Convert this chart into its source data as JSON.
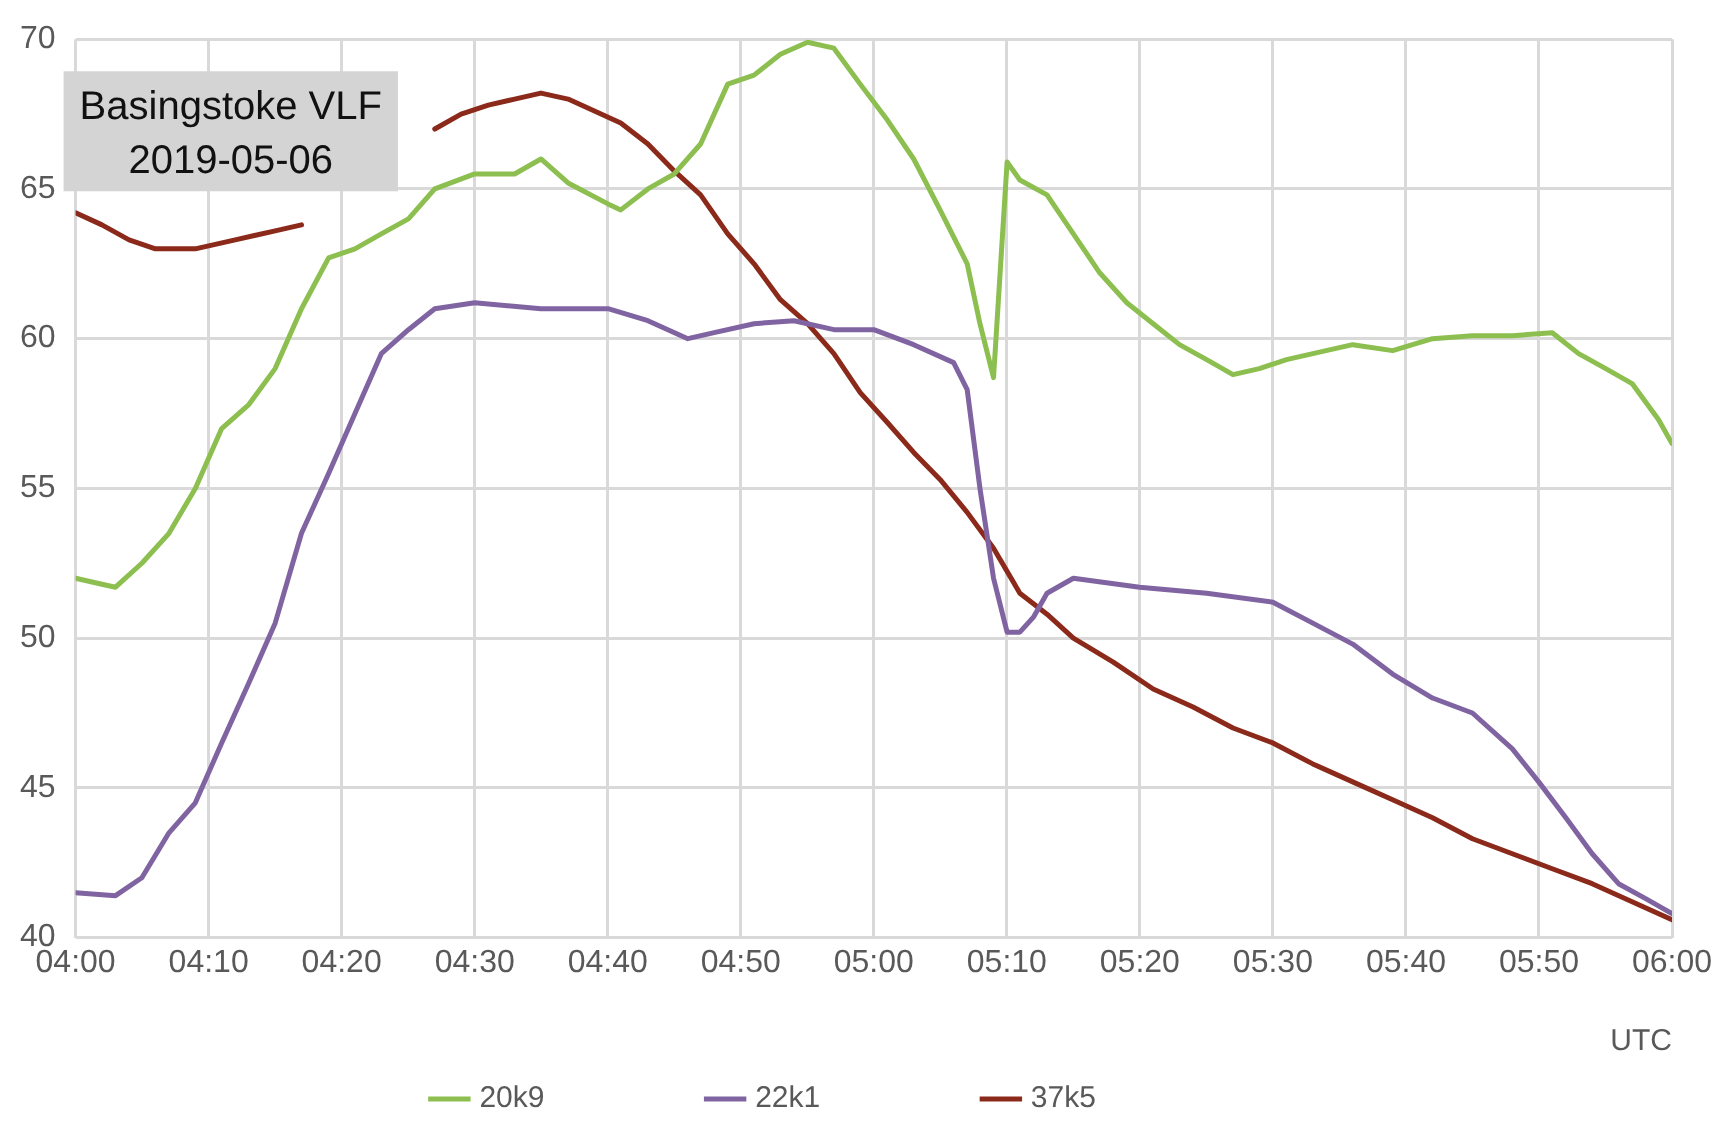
{
  "chart_data": {
    "type": "line",
    "xlabel": "UTC",
    "annotations": [
      "Basingstoke VLF",
      "2019-05-06"
    ],
    "xlim": [
      4,
      6
    ],
    "xticks": [
      {
        "value": 4,
        "label": "04:00"
      },
      {
        "value": 4.1667,
        "label": "04:10"
      },
      {
        "value": 4.3333,
        "label": "04:20"
      },
      {
        "value": 4.5,
        "label": "04:30"
      },
      {
        "value": 4.6667,
        "label": "04:40"
      },
      {
        "value": 4.8333,
        "label": "04:50"
      },
      {
        "value": 5,
        "label": "05:00"
      },
      {
        "value": 5.1667,
        "label": "05:10"
      },
      {
        "value": 5.3333,
        "label": "05:20"
      },
      {
        "value": 5.5,
        "label": "05:30"
      },
      {
        "value": 5.6667,
        "label": "05:40"
      },
      {
        "value": 5.8333,
        "label": "05:50"
      },
      {
        "value": 6,
        "label": "06:00"
      }
    ],
    "ylim": [
      40,
      70
    ],
    "yticks": [
      40,
      45,
      50,
      55,
      60,
      65,
      70
    ],
    "grid": true,
    "legend": "bottom",
    "marker": "none",
    "line_style": "solid",
    "series": [
      {
        "name": "20k9",
        "color": "#8cbf4f",
        "x": [
          4,
          4.033,
          4.05,
          4.083,
          4.117,
          4.15,
          4.183,
          4.217,
          4.25,
          4.283,
          4.317,
          4.35,
          4.383,
          4.417,
          4.45,
          4.5,
          4.55,
          4.583,
          4.617,
          4.667,
          4.683,
          4.717,
          4.75,
          4.783,
          4.817,
          4.85,
          4.883,
          4.917,
          4.95,
          4.983,
          5.017,
          5.05,
          5.083,
          5.117,
          5.133,
          5.15,
          5.167,
          5.183,
          5.217,
          5.25,
          5.283,
          5.317,
          5.35,
          5.383,
          5.417,
          5.45,
          5.483,
          5.517,
          5.55,
          5.6,
          5.65,
          5.7,
          5.75,
          5.8,
          5.85,
          5.883,
          5.917,
          5.95,
          5.983,
          6
        ],
        "values": [
          52.0,
          51.8,
          51.7,
          52.5,
          53.5,
          55,
          57,
          57.8,
          59,
          61,
          62.7,
          63,
          63.5,
          64,
          65,
          65.5,
          65.5,
          66,
          65.2,
          64.5,
          64.3,
          65,
          65.5,
          66.5,
          68.5,
          68.8,
          69.5,
          69.9,
          69.7,
          68.5,
          67.3,
          66,
          64.3,
          62.5,
          60.5,
          58.7,
          65.9,
          65.3,
          64.8,
          63.5,
          62.2,
          61.2,
          60.5,
          59.8,
          59.3,
          58.8,
          59.0,
          59.3,
          59.5,
          59.8,
          59.6,
          60.0,
          60.1,
          60.1,
          60.2,
          59.5,
          59.0,
          58.5,
          57.3,
          56.5
        ]
      },
      {
        "name": "22k1",
        "color": "#8064a2",
        "x": [
          4,
          4.05,
          4.083,
          4.117,
          4.15,
          4.183,
          4.217,
          4.25,
          4.283,
          4.317,
          4.35,
          4.383,
          4.417,
          4.45,
          4.5,
          4.583,
          4.667,
          4.717,
          4.767,
          4.8,
          4.85,
          4.9,
          4.95,
          5,
          5.05,
          5.1,
          5.117,
          5.133,
          5.15,
          5.167,
          5.183,
          5.2,
          5.217,
          5.25,
          5.333,
          5.417,
          5.5,
          5.55,
          5.6,
          5.65,
          5.7,
          5.75,
          5.8,
          5.833,
          5.867,
          5.9,
          5.933,
          5.967,
          6
        ],
        "values": [
          41.5,
          41.4,
          42,
          43.5,
          44.5,
          46.5,
          48.5,
          50.5,
          53.5,
          55.5,
          57.5,
          59.5,
          60.3,
          61,
          61.2,
          61,
          61,
          60.6,
          60.0,
          60.2,
          60.5,
          60.6,
          60.3,
          60.3,
          59.8,
          59.2,
          58.3,
          55,
          52,
          50.2,
          50.2,
          50.7,
          51.5,
          52.0,
          51.7,
          51.5,
          51.2,
          50.5,
          49.8,
          48.8,
          48,
          47.5,
          46.3,
          45.2,
          44.0,
          42.8,
          41.8,
          41.3,
          40.8
        ]
      },
      {
        "name": "37k5",
        "color": "#8b2a1a",
        "x": [
          4,
          4.033,
          4.067,
          4.1,
          4.15,
          4.2,
          4.25,
          4.283,
          4.367,
          4.45,
          4.483,
          4.517,
          4.55,
          4.583,
          4.617,
          4.65,
          4.683,
          4.717,
          4.75,
          4.783,
          4.817,
          4.85,
          4.883,
          4.917,
          4.95,
          4.983,
          5.017,
          5.05,
          5.083,
          5.117,
          5.15,
          5.183,
          5.217,
          5.25,
          5.3,
          5.35,
          5.4,
          5.45,
          5.5,
          5.55,
          5.6,
          5.65,
          5.7,
          5.75,
          5.8,
          5.85,
          5.9,
          5.95,
          6
        ],
        "values": [
          64.2,
          63.8,
          63.3,
          63.0,
          63.0,
          63.3,
          63.6,
          63.8,
          null,
          67.0,
          67.5,
          67.8,
          68.0,
          68.2,
          68.0,
          67.6,
          67.2,
          66.5,
          65.6,
          64.8,
          63.5,
          62.5,
          61.3,
          60.5,
          59.5,
          58.2,
          57.2,
          56.2,
          55.3,
          54.2,
          53.0,
          51.5,
          50.8,
          50.0,
          49.2,
          48.3,
          47.7,
          47.0,
          46.5,
          45.8,
          45.2,
          44.6,
          44.0,
          43.3,
          42.8,
          42.3,
          41.8,
          41.2,
          40.6
        ]
      }
    ]
  }
}
